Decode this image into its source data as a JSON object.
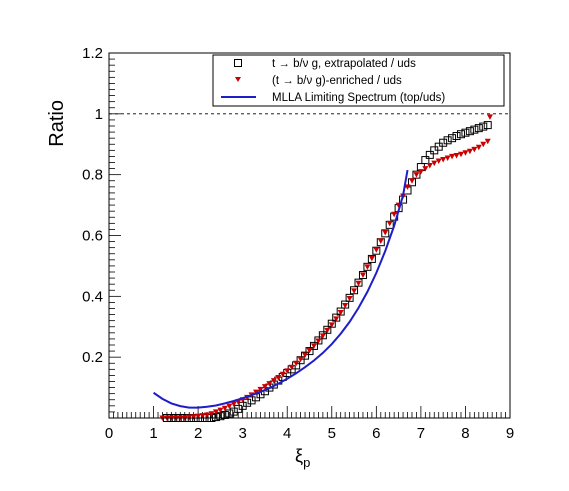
{
  "chart_data": {
    "type": "scatter",
    "xlabel": "ξ",
    "xlabel_sub": "p",
    "ylabel": "Ratio",
    "xlim": [
      0,
      9
    ],
    "ylim": [
      0,
      1.2
    ],
    "x_ticks": [
      "0",
      "1",
      "2",
      "3",
      "4",
      "5",
      "6",
      "7",
      "8",
      "9"
    ],
    "y_ticks": [
      "0.2",
      "0.4",
      "0.6",
      "0.8",
      "1",
      "1.2"
    ],
    "reference_line": 1.0,
    "legend_position": "top-right",
    "series": [
      {
        "name": "t → b/ν g, extrapolated / uds",
        "marker": "open-square",
        "color": "#000000",
        "x": [
          1.3,
          1.4,
          1.5,
          1.6,
          1.7,
          1.8,
          1.9,
          2.0,
          2.1,
          2.2,
          2.3,
          2.4,
          2.5,
          2.6,
          2.7,
          2.8,
          2.9,
          3.0,
          3.1,
          3.2,
          3.3,
          3.4,
          3.5,
          3.6,
          3.7,
          3.8,
          3.9,
          4.0,
          4.1,
          4.2,
          4.3,
          4.4,
          4.5,
          4.6,
          4.7,
          4.8,
          4.9,
          5.0,
          5.1,
          5.2,
          5.3,
          5.4,
          5.5,
          5.6,
          5.7,
          5.8,
          5.9,
          6.0,
          6.1,
          6.2,
          6.3,
          6.4,
          6.5,
          6.6,
          6.7,
          6.8,
          6.9,
          7.0,
          7.1,
          7.2,
          7.3,
          7.4,
          7.5,
          7.6,
          7.7,
          7.8,
          7.9,
          8.0,
          8.1,
          8.2,
          8.3,
          8.4,
          8.5
        ],
        "y": [
          0.0,
          0.0,
          0.0,
          0.0,
          0.0,
          0.0,
          0.0,
          0.0,
          0.0,
          0.0,
          0.0,
          0.003,
          0.006,
          0.01,
          0.015,
          0.021,
          0.03,
          0.04,
          0.05,
          0.058,
          0.068,
          0.078,
          0.088,
          0.1,
          0.11,
          0.123,
          0.135,
          0.148,
          0.16,
          0.173,
          0.19,
          0.205,
          0.22,
          0.237,
          0.255,
          0.272,
          0.29,
          0.31,
          0.33,
          0.35,
          0.373,
          0.395,
          0.42,
          0.445,
          0.47,
          0.497,
          0.523,
          0.55,
          0.578,
          0.607,
          0.635,
          0.662,
          0.69,
          0.718,
          0.748,
          0.775,
          0.8,
          0.825,
          0.848,
          0.865,
          0.88,
          0.892,
          0.905,
          0.913,
          0.92,
          0.927,
          0.933,
          0.938,
          0.943,
          0.948,
          0.953,
          0.958,
          0.963
        ]
      },
      {
        "name": "(t → b/ν g)-enriched / uds",
        "marker": "filled-triangle-down",
        "color": "#cc0000",
        "x": [
          1.2,
          1.3,
          1.4,
          1.5,
          1.6,
          1.7,
          1.8,
          1.9,
          2.0,
          2.1,
          2.2,
          2.3,
          2.4,
          2.5,
          2.6,
          2.7,
          2.8,
          2.9,
          3.0,
          3.1,
          3.2,
          3.3,
          3.4,
          3.5,
          3.6,
          3.7,
          3.8,
          3.9,
          4.0,
          4.1,
          4.2,
          4.3,
          4.4,
          4.5,
          4.6,
          4.7,
          4.8,
          4.9,
          5.0,
          5.1,
          5.2,
          5.3,
          5.4,
          5.5,
          5.6,
          5.7,
          5.8,
          5.9,
          6.0,
          6.1,
          6.2,
          6.3,
          6.4,
          6.5,
          6.6,
          6.7,
          6.8,
          6.9,
          7.0,
          7.1,
          7.2,
          7.3,
          7.4,
          7.5,
          7.6,
          7.7,
          7.8,
          7.9,
          8.0,
          8.1,
          8.2,
          8.3,
          8.4,
          8.5,
          8.55
        ],
        "y": [
          0.0,
          0.0,
          0.0,
          0.0,
          0.0,
          0.0,
          0.003,
          0.004,
          0.006,
          0.008,
          0.01,
          0.014,
          0.02,
          0.026,
          0.032,
          0.039,
          0.046,
          0.053,
          0.06,
          0.068,
          0.076,
          0.085,
          0.094,
          0.103,
          0.113,
          0.123,
          0.133,
          0.144,
          0.155,
          0.167,
          0.18,
          0.193,
          0.207,
          0.222,
          0.237,
          0.253,
          0.27,
          0.288,
          0.306,
          0.326,
          0.347,
          0.37,
          0.393,
          0.418,
          0.443,
          0.47,
          0.497,
          0.525,
          0.553,
          0.582,
          0.61,
          0.64,
          0.67,
          0.7,
          0.73,
          0.76,
          0.78,
          0.8,
          0.81,
          0.82,
          0.83,
          0.838,
          0.845,
          0.85,
          0.855,
          0.86,
          0.863,
          0.867,
          0.872,
          0.877,
          0.883,
          0.89,
          0.9,
          0.91,
          0.99
        ]
      },
      {
        "name": "MLLA Limiting Spectrum (top/uds)",
        "marker": "line",
        "color": "#1e1ec8",
        "x": [
          1.0,
          1.2,
          1.4,
          1.6,
          1.8,
          2.0,
          2.2,
          2.4,
          2.6,
          2.8,
          3.0,
          3.2,
          3.4,
          3.6,
          3.8,
          4.0,
          4.2,
          4.4,
          4.6,
          4.8,
          5.0,
          5.2,
          5.4,
          5.6,
          5.8,
          6.0,
          6.2,
          6.4,
          6.6,
          6.7
        ],
        "y": [
          0.083,
          0.063,
          0.048,
          0.039,
          0.034,
          0.034,
          0.037,
          0.041,
          0.048,
          0.056,
          0.065,
          0.075,
          0.086,
          0.098,
          0.113,
          0.129,
          0.147,
          0.167,
          0.189,
          0.214,
          0.243,
          0.277,
          0.316,
          0.362,
          0.415,
          0.477,
          0.549,
          0.632,
          0.732,
          0.815
        ]
      }
    ]
  }
}
